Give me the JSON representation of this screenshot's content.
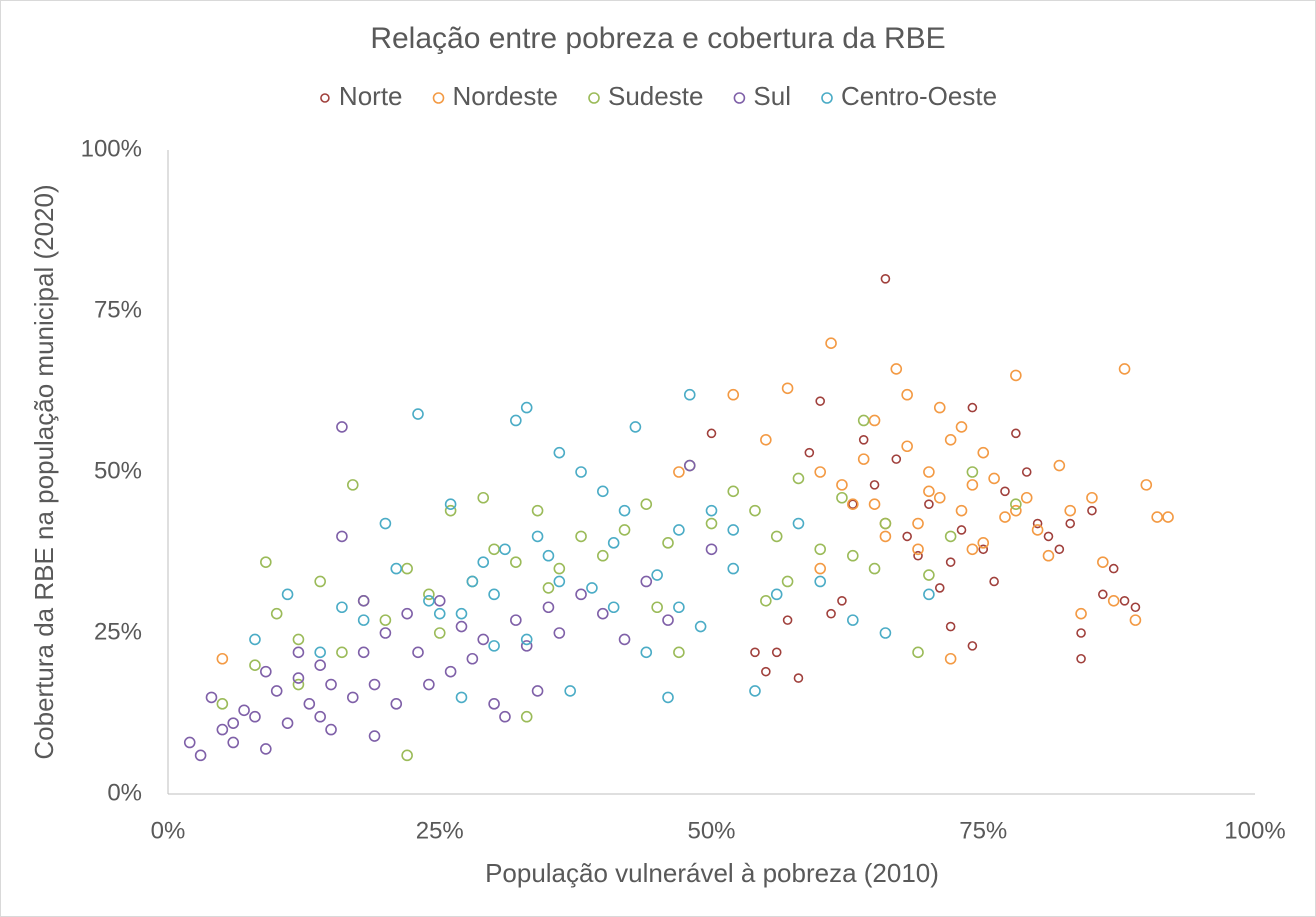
{
  "chart_data": {
    "type": "scatter",
    "title": "Relação entre pobreza e cobertura da RBE",
    "x_label": "População vulnerável à pobreza (2010)",
    "y_label": "Cobertura da RBE na população municipal (2020)",
    "xlim": [
      0,
      100
    ],
    "ylim": [
      0,
      100
    ],
    "xticks": [
      {
        "value": 0,
        "label": "0%"
      },
      {
        "value": 25,
        "label": "25%"
      },
      {
        "value": 50,
        "label": "50%"
      },
      {
        "value": 75,
        "label": "75%"
      },
      {
        "value": 100,
        "label": "100%"
      }
    ],
    "yticks": [
      {
        "value": 0,
        "label": "0%"
      },
      {
        "value": 25,
        "label": "25%"
      },
      {
        "value": 50,
        "label": "50%"
      },
      {
        "value": 75,
        "label": "75%"
      },
      {
        "value": 100,
        "label": "100%"
      }
    ],
    "grid": false,
    "legend": "top",
    "series": [
      {
        "name": "Norte",
        "color": "#a0403c",
        "x": [
          66,
          58,
          60,
          62,
          64,
          68,
          70,
          72,
          74,
          76,
          78,
          80,
          82,
          84,
          86,
          88,
          55,
          56,
          57,
          74,
          75,
          84,
          89,
          63,
          71,
          73,
          67,
          69,
          77,
          79,
          81,
          85,
          87,
          50,
          54,
          65,
          61,
          59,
          83,
          72
        ],
        "values": [
          80,
          18,
          61,
          30,
          55,
          40,
          45,
          26,
          23,
          33,
          56,
          42,
          38,
          25,
          31,
          30,
          19,
          22,
          27,
          60,
          38,
          21,
          29,
          45,
          32,
          41,
          52,
          37,
          47,
          50,
          40,
          44,
          35,
          56,
          22,
          48,
          28,
          53,
          42,
          36
        ]
      },
      {
        "name": "Nordeste",
        "color": "#f39a44",
        "x": [
          5,
          47,
          52,
          55,
          57,
          60,
          61,
          62,
          63,
          64,
          65,
          66,
          67,
          68,
          69,
          70,
          71,
          72,
          73,
          74,
          75,
          76,
          77,
          78,
          79,
          80,
          81,
          82,
          83,
          84,
          85,
          86,
          87,
          88,
          89,
          90,
          91,
          92,
          60,
          65,
          70,
          72,
          75,
          68,
          74,
          78,
          66,
          69,
          71,
          73
        ],
        "values": [
          21,
          50,
          62,
          55,
          63,
          50,
          70,
          48,
          45,
          52,
          58,
          40,
          66,
          54,
          42,
          47,
          60,
          21,
          44,
          38,
          53,
          49,
          43,
          65,
          46,
          41,
          37,
          51,
          44,
          28,
          46,
          36,
          30,
          66,
          27,
          48,
          43,
          43,
          35,
          45,
          50,
          55,
          39,
          62,
          48,
          44,
          42,
          38,
          46,
          57
        ]
      },
      {
        "name": "Sudeste",
        "color": "#9bbb59",
        "x": [
          9,
          17,
          22,
          33,
          69,
          5,
          8,
          10,
          12,
          14,
          16,
          18,
          20,
          22,
          24,
          26,
          28,
          30,
          32,
          34,
          36,
          38,
          40,
          42,
          44,
          46,
          48,
          50,
          52,
          54,
          56,
          58,
          60,
          62,
          64,
          66,
          70,
          72,
          74,
          78,
          12,
          25,
          35,
          45,
          55,
          65,
          47,
          63,
          57,
          29
        ],
        "values": [
          36,
          48,
          6,
          12,
          22,
          14,
          20,
          28,
          24,
          33,
          22,
          30,
          27,
          35,
          31,
          44,
          33,
          38,
          36,
          44,
          35,
          40,
          37,
          41,
          45,
          39,
          51,
          42,
          47,
          44,
          40,
          49,
          38,
          46,
          58,
          42,
          34,
          40,
          50,
          45,
          17,
          25,
          32,
          29,
          30,
          35,
          22,
          37,
          33,
          46
        ]
      },
      {
        "name": "Sul",
        "color": "#7f60a8",
        "x": [
          2,
          3,
          4,
          5,
          6,
          7,
          8,
          9,
          10,
          11,
          12,
          13,
          14,
          15,
          16,
          17,
          18,
          19,
          20,
          21,
          22,
          23,
          24,
          25,
          26,
          27,
          28,
          29,
          30,
          31,
          32,
          33,
          34,
          35,
          36,
          38,
          40,
          42,
          44,
          46,
          48,
          50,
          16,
          15,
          19,
          6,
          9,
          12,
          14,
          18
        ],
        "values": [
          8,
          6,
          15,
          10,
          8,
          13,
          12,
          7,
          16,
          11,
          18,
          14,
          20,
          17,
          57,
          15,
          22,
          9,
          25,
          14,
          28,
          22,
          17,
          30,
          19,
          26,
          21,
          24,
          14,
          12,
          27,
          23,
          16,
          29,
          25,
          31,
          28,
          24,
          33,
          27,
          51,
          38,
          40,
          10,
          17,
          11,
          19,
          22,
          12,
          30
        ]
      },
      {
        "name": "Centro-Oeste",
        "color": "#4bacc6",
        "x": [
          8,
          11,
          14,
          16,
          18,
          20,
          21,
          23,
          24,
          25,
          26,
          27,
          28,
          29,
          30,
          31,
          32,
          33,
          34,
          35,
          36,
          37,
          38,
          39,
          40,
          41,
          42,
          43,
          44,
          45,
          46,
          47,
          48,
          49,
          50,
          52,
          54,
          56,
          58,
          60,
          63,
          66,
          70,
          27,
          30,
          36,
          47,
          52,
          33,
          41
        ],
        "values": [
          24,
          31,
          22,
          29,
          27,
          42,
          35,
          59,
          30,
          28,
          45,
          15,
          33,
          36,
          31,
          38,
          58,
          60,
          40,
          37,
          53,
          16,
          50,
          32,
          47,
          29,
          44,
          57,
          22,
          34,
          15,
          41,
          62,
          26,
          44,
          35,
          16,
          31,
          42,
          33,
          27,
          25,
          31,
          28,
          23,
          33,
          29,
          41,
          24,
          39
        ]
      }
    ]
  }
}
